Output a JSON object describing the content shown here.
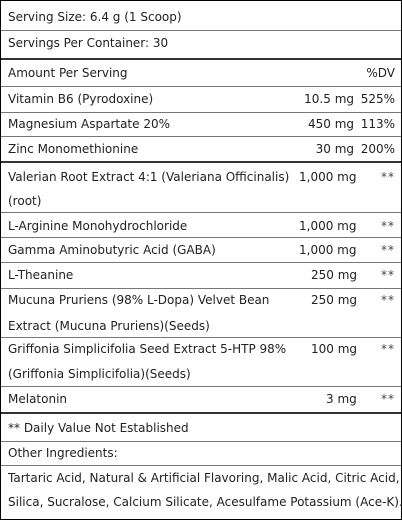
{
  "serving_size": "Serving Size: 6.4 g (1 Scoop)",
  "servings_per_container": "Servings Per Container: 30",
  "header": {
    "amount_label": "Amount Per Serving",
    "dv_label": "%DV"
  },
  "rows": [
    {
      "name": "Vitamin B6 (Pyrodoxine)",
      "amount": "10.5 mg",
      "dv": "525%"
    },
    {
      "name": "Magnesium Aspartate 20%",
      "amount": "450 mg",
      "dv": "113%"
    },
    {
      "name": "Zinc Monomethionine",
      "amount": "30 mg",
      "dv": "200%"
    },
    {
      "name": "Valerian Root Extract 4:1 (Valeriana Officinalis)",
      "name2": "(root)",
      "amount": "1,000 mg",
      "dv": "**"
    },
    {
      "name": "L-Arginine Monohydrochloride",
      "amount": "1,000 mg",
      "dv": "**"
    },
    {
      "name": "Gamma Aminobutyric Acid (GABA)",
      "amount": "1,000 mg",
      "dv": "**"
    },
    {
      "name": "L-Theanine",
      "amount": "250 mg",
      "dv": "**"
    },
    {
      "name": "Mucuna Pruriens (98% L-Dopa) Velvet Bean",
      "name2": "Extract (Mucuna Pruriens)(Seeds)",
      "amount": "250 mg",
      "dv": "**"
    },
    {
      "name": "Griffonia Simplicifolia Seed Extract 5-HTP 98%",
      "name2": "(Griffonia Simplicifolia)(Seeds)",
      "amount": "100 mg",
      "dv": "**"
    },
    {
      "name": "Melatonin",
      "amount": "3 mg",
      "dv": "**"
    }
  ],
  "footnote": "** Daily Value Not Established",
  "other_ingredients_label": "Other Ingredients:",
  "other_ingredients_line1": "Tartaric Acid, Natural & Artificial Flavoring, Malic Acid, Citric Acid,",
  "other_ingredients_line2": "Silica, Sucralose, Calcium Silicate, Acesulfame Potassium (Ace-K)."
}
